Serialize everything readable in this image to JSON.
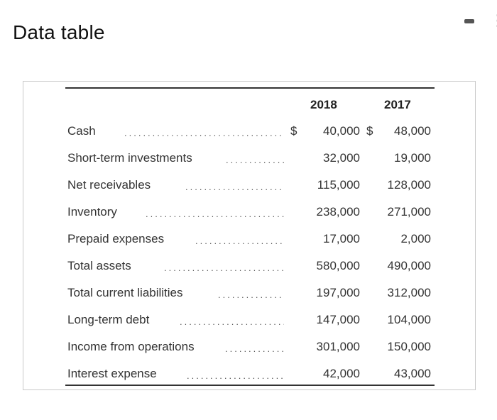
{
  "title": "Data table",
  "columns": [
    "2018",
    "2017"
  ],
  "currency_symbol": "$",
  "rows": [
    {
      "label": "Cash",
      "v2018": "40,000",
      "v2017": "48,000"
    },
    {
      "label": "Short-term investments",
      "v2018": "32,000",
      "v2017": "19,000"
    },
    {
      "label": "Net receivables",
      "v2018": "115,000",
      "v2017": "128,000"
    },
    {
      "label": "Inventory",
      "v2018": "238,000",
      "v2017": "271,000"
    },
    {
      "label": "Prepaid expenses",
      "v2018": "17,000",
      "v2017": "2,000"
    },
    {
      "label": "Total assets",
      "v2018": "580,000",
      "v2017": "490,000"
    },
    {
      "label": "Total current liabilities",
      "v2018": "197,000",
      "v2017": "312,000"
    },
    {
      "label": "Long-term debt",
      "v2018": "147,000",
      "v2017": "104,000"
    },
    {
      "label": "Income from operations",
      "v2018": "301,000",
      "v2017": "150,000"
    },
    {
      "label": "Interest expense",
      "v2018": "42,000",
      "v2017": "43,000"
    }
  ]
}
